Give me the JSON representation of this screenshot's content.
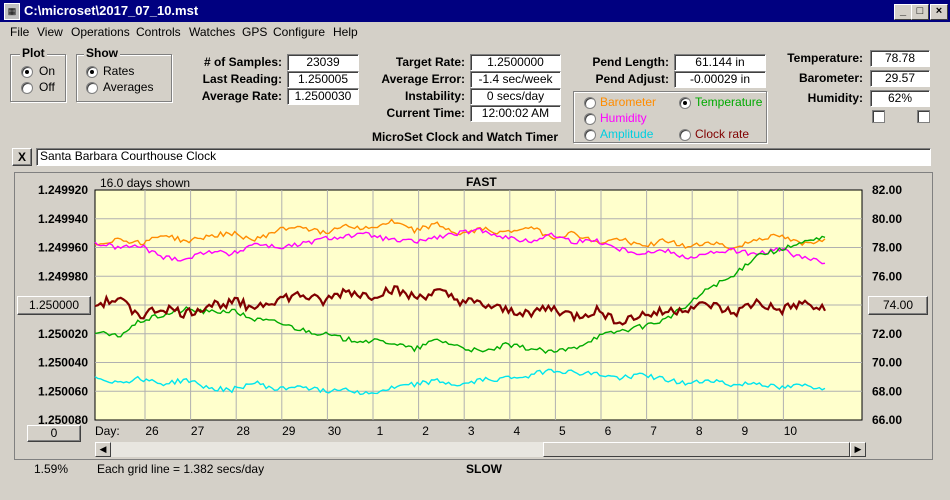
{
  "window": {
    "title": "C:\\microset\\2017_07_10.mst"
  },
  "menu": [
    "File",
    "View",
    "Operations",
    "Controls",
    "Watches",
    "GPS",
    "Configure",
    "Help"
  ],
  "plot_group": {
    "title": "Plot",
    "on_label": "On",
    "off_label": "Off",
    "selected": "On"
  },
  "show_group": {
    "title": "Show",
    "rates_label": "Rates",
    "averages_label": "Averages",
    "selected": "Rates"
  },
  "stats": {
    "samples_label": "# of Samples:",
    "samples": "23039",
    "last_label": "Last Reading:",
    "last": "1.250005",
    "avg_rate_label": "Average Rate:",
    "avg_rate": "1.2500030"
  },
  "rates": {
    "target_label": "Target Rate:",
    "target": "1.2500000",
    "avg_err_label": "Average Error:",
    "avg_err": "-1.4 sec/week",
    "instab_label": "Instability:",
    "instab": "0 secs/day",
    "time_label": "Current Time:",
    "time": "12:00:02 AM"
  },
  "app_caption": "MicroSet Clock and Watch Timer",
  "pend": {
    "length_label": "Pend Length:",
    "length": "61.144 in",
    "adjust_label": "Pend Adjust:",
    "adjust": "-0.00029 in"
  },
  "env": {
    "temp_label": "Temperature:",
    "temp": "78.78",
    "baro_label": "Barometer:",
    "baro": "29.57",
    "hum_label": "Humidity:",
    "hum": "62%"
  },
  "aux_options": {
    "barometer": "Barometer",
    "temperature": "Temperature",
    "humidity": "Humidity",
    "amplitude": "Amplitude",
    "clock_rate": "Clock rate",
    "selected": "Temperature"
  },
  "colors": {
    "barometer": "#ff8c00",
    "temperature": "#00aa00",
    "humidity": "#ff00ff",
    "amplitude": "#00e5ee",
    "clock_rate": "#800000",
    "plot_bg": "#ffffcc"
  },
  "note": {
    "close": "X",
    "text": "Santa Barbara Courthouse Clock"
  },
  "chart_data": {
    "type": "line",
    "top_label": "FAST",
    "bottom_label": "SLOW",
    "days_shown": "16.0 days shown",
    "grid_note": "Each grid line = 1.382 secs/day",
    "day_label": "Day:",
    "x_ticks": [
      "26",
      "27",
      "28",
      "29",
      "30",
      "1",
      "2",
      "3",
      "4",
      "5",
      "6",
      "7",
      "8",
      "9",
      "10"
    ],
    "left_ticks": [
      "1.249920",
      "1.249940",
      "1.249960",
      "1.249980",
      "1.250000",
      "1.250020",
      "1.250040",
      "1.250060",
      "1.250080"
    ],
    "left_center_button": "1.250000",
    "right_ticks": [
      "82.00",
      "80.00",
      "78.00",
      "76.00",
      "74.00",
      "72.00",
      "70.00",
      "68.00",
      "66.00"
    ],
    "right_center_button": "74.00",
    "left_ylim": [
      1.24992,
      1.25008
    ],
    "right_ylim": [
      66,
      82
    ],
    "bottom_left_button": "0",
    "bottom_left_percent": "1.59%",
    "series": [
      {
        "key": "barometer",
        "axis": "right",
        "points": [
          [
            0,
            78.2
          ],
          [
            1,
            78.6
          ],
          [
            2,
            78.3
          ],
          [
            3,
            78.9
          ],
          [
            4,
            78.4
          ],
          [
            5,
            78.8
          ],
          [
            6,
            79.0
          ],
          [
            7,
            78.5
          ],
          [
            8,
            79.2
          ],
          [
            9,
            79.5
          ],
          [
            10,
            79.0
          ],
          [
            11,
            79.6
          ],
          [
            12,
            79.3
          ],
          [
            13,
            79.8
          ],
          [
            14,
            79.2
          ],
          [
            15,
            79.6
          ],
          [
            16,
            78.9
          ],
          [
            17,
            79.3
          ],
          [
            18,
            79.0
          ],
          [
            19,
            79.5
          ],
          [
            20,
            78.7
          ],
          [
            21,
            79.0
          ],
          [
            22,
            78.3
          ],
          [
            23,
            78.6
          ],
          [
            24,
            78.1
          ],
          [
            25,
            78.5
          ],
          [
            26,
            78.0
          ],
          [
            27,
            78.4
          ],
          [
            28,
            77.9
          ],
          [
            29,
            78.6
          ],
          [
            30,
            78.8
          ],
          [
            31,
            78.2
          ],
          [
            32,
            78.6
          ]
        ]
      },
      {
        "key": "humidity",
        "axis": "right",
        "points": [
          [
            0,
            78.3
          ],
          [
            1,
            78.0
          ],
          [
            2,
            78.1
          ],
          [
            3,
            77.3
          ],
          [
            4,
            77.2
          ],
          [
            5,
            77.8
          ],
          [
            6,
            77.5
          ],
          [
            7,
            78.3
          ],
          [
            8,
            78.0
          ],
          [
            9,
            78.2
          ],
          [
            10,
            78.6
          ],
          [
            11,
            78.8
          ],
          [
            12,
            78.9
          ],
          [
            13,
            78.5
          ],
          [
            14,
            78.4
          ],
          [
            15,
            78.7
          ],
          [
            16,
            79.0
          ],
          [
            17,
            79.2
          ],
          [
            18,
            78.7
          ],
          [
            19,
            78.4
          ],
          [
            20,
            78.9
          ],
          [
            21,
            78.4
          ],
          [
            22,
            78.5
          ],
          [
            23,
            77.9
          ],
          [
            24,
            77.6
          ],
          [
            25,
            77.8
          ],
          [
            26,
            77.3
          ],
          [
            27,
            77.6
          ],
          [
            28,
            77.8
          ],
          [
            29,
            77.5
          ],
          [
            30,
            77.9
          ],
          [
            31,
            77.3
          ],
          [
            32,
            76.9
          ]
        ]
      },
      {
        "key": "temperature",
        "axis": "right",
        "points": [
          [
            0,
            72.1
          ],
          [
            1,
            71.8
          ],
          [
            2,
            72.9
          ],
          [
            3,
            73.3
          ],
          [
            4,
            73.7
          ],
          [
            5,
            73.5
          ],
          [
            6,
            73.6
          ],
          [
            7,
            73.0
          ],
          [
            8,
            72.8
          ],
          [
            9,
            72.3
          ],
          [
            10,
            72.0
          ],
          [
            11,
            71.6
          ],
          [
            12,
            71.5
          ],
          [
            13,
            71.4
          ],
          [
            14,
            70.9
          ],
          [
            15,
            71.6
          ],
          [
            16,
            71.1
          ],
          [
            17,
            70.7
          ],
          [
            18,
            71.2
          ],
          [
            19,
            71.0
          ],
          [
            20,
            70.7
          ],
          [
            21,
            71.0
          ],
          [
            22,
            71.8
          ],
          [
            23,
            72.2
          ],
          [
            24,
            72.5
          ],
          [
            25,
            73.0
          ],
          [
            26,
            74.0
          ],
          [
            27,
            75.3
          ],
          [
            28,
            76.0
          ],
          [
            29,
            77.5
          ],
          [
            30,
            77.8
          ],
          [
            31,
            78.3
          ],
          [
            32,
            78.7
          ]
        ]
      },
      {
        "key": "amplitude",
        "axis": "right",
        "points": [
          [
            0,
            69.0
          ],
          [
            1,
            68.6
          ],
          [
            2,
            68.9
          ],
          [
            3,
            68.5
          ],
          [
            4,
            68.8
          ],
          [
            5,
            68.2
          ],
          [
            6,
            68.1
          ],
          [
            7,
            68.6
          ],
          [
            8,
            68.1
          ],
          [
            9,
            68.4
          ],
          [
            10,
            68.0
          ],
          [
            11,
            68.2
          ],
          [
            12,
            67.8
          ],
          [
            13,
            68.2
          ],
          [
            14,
            68.5
          ],
          [
            15,
            68.7
          ],
          [
            16,
            68.4
          ],
          [
            17,
            68.8
          ],
          [
            18,
            68.9
          ],
          [
            19,
            69.1
          ],
          [
            20,
            69.5
          ],
          [
            21,
            69.3
          ],
          [
            22,
            69.2
          ],
          [
            23,
            68.9
          ],
          [
            24,
            69.2
          ],
          [
            25,
            68.8
          ],
          [
            26,
            68.5
          ],
          [
            27,
            68.8
          ],
          [
            28,
            68.4
          ],
          [
            29,
            68.6
          ],
          [
            30,
            68.2
          ],
          [
            31,
            68.4
          ],
          [
            32,
            68.2
          ]
        ]
      },
      {
        "key": "clock_rate",
        "axis": "right",
        "points": [
          [
            0,
            74.0
          ],
          [
            1,
            74.4
          ],
          [
            2,
            73.3
          ],
          [
            3,
            73.8
          ],
          [
            4,
            73.4
          ],
          [
            5,
            74.0
          ],
          [
            6,
            74.2
          ],
          [
            7,
            73.9
          ],
          [
            8,
            74.4
          ],
          [
            9,
            74.7
          ],
          [
            10,
            74.2
          ],
          [
            11,
            75.0
          ],
          [
            12,
            74.6
          ],
          [
            13,
            75.1
          ],
          [
            14,
            74.5
          ],
          [
            15,
            74.9
          ],
          [
            16,
            74.3
          ],
          [
            17,
            74.0
          ],
          [
            18,
            73.6
          ],
          [
            19,
            73.5
          ],
          [
            20,
            73.8
          ],
          [
            21,
            73.2
          ],
          [
            22,
            73.6
          ],
          [
            23,
            72.9
          ],
          [
            24,
            73.3
          ],
          [
            25,
            73.5
          ],
          [
            26,
            73.8
          ],
          [
            27,
            74.0
          ],
          [
            28,
            73.4
          ],
          [
            29,
            74.2
          ],
          [
            30,
            73.6
          ],
          [
            31,
            74.1
          ],
          [
            32,
            73.6
          ]
        ]
      }
    ]
  }
}
